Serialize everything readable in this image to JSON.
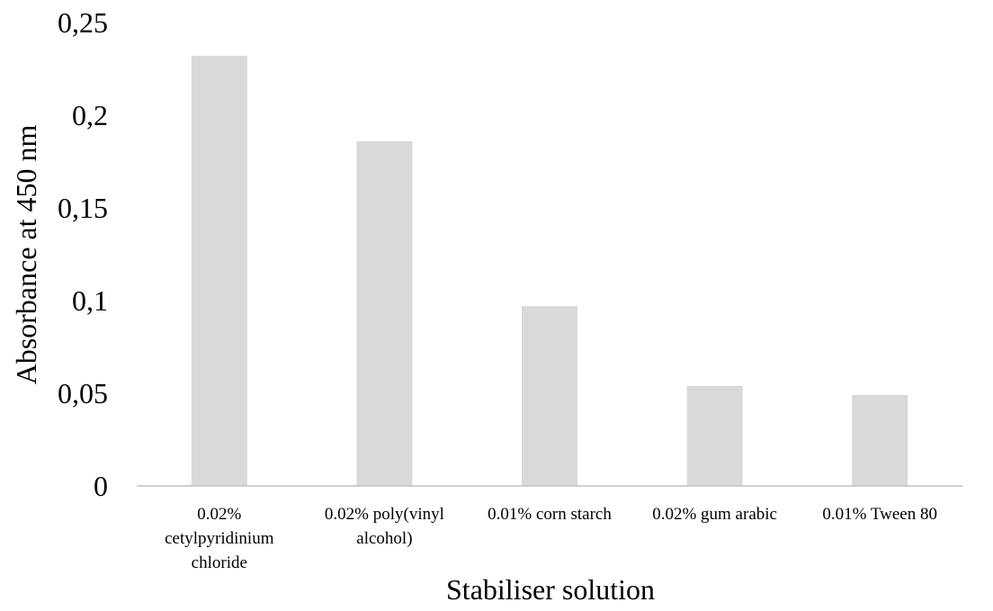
{
  "colors": {
    "bar": "#d9d9d9",
    "axis": "#bfbfbf",
    "text": "#000000"
  },
  "chart_data": {
    "type": "bar",
    "title": "",
    "xlabel": "Stabiliser solution",
    "ylabel": "Absorbance  at 450 nm",
    "ylim": [
      0,
      0.25
    ],
    "yticks": [
      {
        "value": 0,
        "label": "0"
      },
      {
        "value": 0.05,
        "label": "0,05"
      },
      {
        "value": 0.1,
        "label": "0,1"
      },
      {
        "value": 0.15,
        "label": "0,15"
      },
      {
        "value": 0.2,
        "label": "0,2"
      },
      {
        "value": 0.25,
        "label": "0,25"
      }
    ],
    "grid": false,
    "categories": [
      [
        "0.02%",
        "cetylpyridinium",
        "chloride"
      ],
      [
        "0.02% poly(vinyl",
        "alcohol)"
      ],
      [
        "0.01% corn starch"
      ],
      [
        "0.02% gum arabic"
      ],
      [
        "0.01% Tween 80"
      ]
    ],
    "values": [
      0.232,
      0.186,
      0.097,
      0.054,
      0.049
    ]
  }
}
